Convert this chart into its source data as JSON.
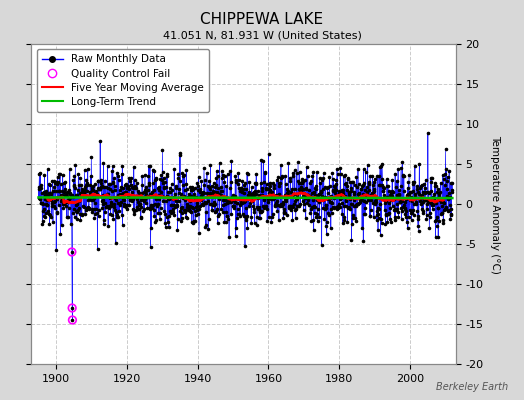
{
  "title": "CHIPPEWA LAKE",
  "subtitle": "41.051 N, 81.931 W (United States)",
  "ylabel": "Temperature Anomaly (°C)",
  "credit": "Berkeley Earth",
  "ylim": [
    -20,
    20
  ],
  "yticks": [
    -20,
    -15,
    -10,
    -5,
    0,
    5,
    10,
    15,
    20
  ],
  "xlim": [
    1893,
    2013
  ],
  "xticks": [
    1900,
    1920,
    1940,
    1960,
    1980,
    2000
  ],
  "x_start": 1895,
  "x_end": 2012,
  "n_months": 1404,
  "seed": 42,
  "raw_color": "#0000ff",
  "dot_color": "#000000",
  "qc_color": "#ff00ff",
  "moving_avg_color": "#ff0000",
  "trend_color": "#00bb00",
  "outer_bg": "#d8d8d8",
  "plot_bg": "#ffffff",
  "grid_color": "#cccccc",
  "title_fontsize": 11,
  "subtitle_fontsize": 8,
  "label_fontsize": 7.5,
  "tick_fontsize": 8,
  "legend_fontsize": 7.5
}
